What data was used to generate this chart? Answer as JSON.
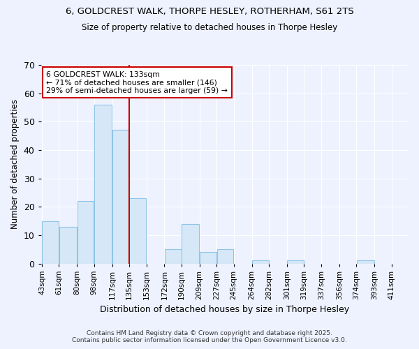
{
  "title_line1": "6, GOLDCREST WALK, THORPE HESLEY, ROTHERHAM, S61 2TS",
  "title_line2": "Size of property relative to detached houses in Thorpe Hesley",
  "xlabel": "Distribution of detached houses by size in Thorpe Hesley",
  "ylabel": "Number of detached properties",
  "bins": [
    43,
    61,
    80,
    98,
    117,
    135,
    153,
    172,
    190,
    209,
    227,
    245,
    264,
    282,
    301,
    319,
    337,
    356,
    374,
    393,
    411
  ],
  "counts": [
    15,
    13,
    22,
    56,
    47,
    23,
    0,
    5,
    14,
    4,
    5,
    0,
    1,
    0,
    1,
    0,
    0,
    0,
    1,
    0,
    0
  ],
  "bar_color": "#d6e8f7",
  "bar_edge_color": "#8ec4e8",
  "property_line_x": 135,
  "property_line_color": "#cc0000",
  "annotation_text": "6 GOLDCREST WALK: 133sqm\n← 71% of detached houses are smaller (146)\n29% of semi-detached houses are larger (59) →",
  "annotation_box_color": "white",
  "annotation_box_edge_color": "#cc0000",
  "ylim": [
    0,
    70
  ],
  "yticks": [
    0,
    10,
    20,
    30,
    40,
    50,
    60,
    70
  ],
  "background_color": "#eef2ff",
  "plot_bg_color": "#eef2ff",
  "footer_line1": "Contains HM Land Registry data © Crown copyright and database right 2025.",
  "footer_line2": "Contains public sector information licensed under the Open Government Licence v3.0.",
  "grid_color": "#ffffff",
  "title_fontsize": 9.5,
  "subtitle_fontsize": 8.5,
  "tick_label_fontsize": 7.5,
  "ylabel_fontsize": 8.5,
  "xlabel_fontsize": 9,
  "annotation_fontsize": 7.8,
  "footer_fontsize": 6.5
}
